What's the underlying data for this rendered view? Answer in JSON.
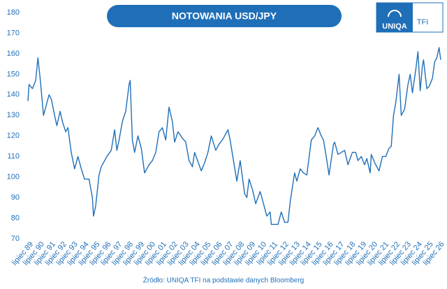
{
  "chart_data": {
    "type": "line",
    "title": "NOTOWANIA USD/JPY",
    "source": "Źródło: UNIQA TFI na podstawie danych Bloomberg",
    "logo": {
      "brand": "UNIQA",
      "suffix": "TFI"
    },
    "xlim": [
      1989.4,
      2026.8
    ],
    "ylim": [
      70,
      180
    ],
    "yticks": [
      70,
      80,
      90,
      100,
      110,
      120,
      130,
      140,
      150,
      160,
      170,
      180
    ],
    "grid": false,
    "xticks": [
      {
        "value": 1989.5,
        "label": "lipiec 89"
      },
      {
        "value": 1990.5,
        "label": "lipiec 90"
      },
      {
        "value": 1991.5,
        "label": "lipiec 91"
      },
      {
        "value": 1992.5,
        "label": "lipiec 92"
      },
      {
        "value": 1993.5,
        "label": "lipiec 93"
      },
      {
        "value": 1994.5,
        "label": "lipiec 94"
      },
      {
        "value": 1995.5,
        "label": "lipiec 95"
      },
      {
        "value": 1996.5,
        "label": "lipiec 96"
      },
      {
        "value": 1997.5,
        "label": "lipiec 97"
      },
      {
        "value": 1998.5,
        "label": "lipiec 98"
      },
      {
        "value": 1999.5,
        "label": "lipiec 99"
      },
      {
        "value": 2000.5,
        "label": "lipiec 00"
      },
      {
        "value": 2001.5,
        "label": "lipiec 01"
      },
      {
        "value": 2002.5,
        "label": "lipiec 02"
      },
      {
        "value": 2003.5,
        "label": "lipiec 03"
      },
      {
        "value": 2004.5,
        "label": "lipiec 04"
      },
      {
        "value": 2005.5,
        "label": "lipiec 05"
      },
      {
        "value": 2006.5,
        "label": "lipiec 06"
      },
      {
        "value": 2007.5,
        "label": "lipiec 07"
      },
      {
        "value": 2008.5,
        "label": "lipiec 08"
      },
      {
        "value": 2009.5,
        "label": "lipiec 09"
      },
      {
        "value": 2010.5,
        "label": "lipiec 10"
      },
      {
        "value": 2011.5,
        "label": "lipiec 11"
      },
      {
        "value": 2012.5,
        "label": "lipiec 12"
      },
      {
        "value": 2013.5,
        "label": "lipiec 13"
      },
      {
        "value": 2014.5,
        "label": "lipiec 14"
      },
      {
        "value": 2015.5,
        "label": "lipiec 15"
      },
      {
        "value": 2016.5,
        "label": "lipiec 16"
      },
      {
        "value": 2017.5,
        "label": "lipiec 17"
      },
      {
        "value": 2018.5,
        "label": "lipiec 18"
      },
      {
        "value": 2019.5,
        "label": "lipiec 19"
      },
      {
        "value": 2020.5,
        "label": "lipiec 20"
      },
      {
        "value": 2021.5,
        "label": "lipiec 21"
      },
      {
        "value": 2022.5,
        "label": "lipiec 22"
      },
      {
        "value": 2023.5,
        "label": "lipiec 23"
      },
      {
        "value": 2024.5,
        "label": "lipiec 24"
      },
      {
        "value": 2025.5,
        "label": "lipiec 25"
      },
      {
        "value": 2026.5,
        "label": "lipiec 26"
      }
    ],
    "series": [
      {
        "color": "#1f6fb8",
        "x": [
          1989.4,
          1989.5,
          1989.8,
          1990.1,
          1990.3,
          1990.5,
          1990.8,
          1991.0,
          1991.3,
          1991.5,
          1991.8,
          1992.0,
          1992.3,
          1992.5,
          1992.8,
          1993.0,
          1993.3,
          1993.6,
          1993.9,
          1994.2,
          1994.5,
          1994.9,
          1995.2,
          1995.3,
          1995.5,
          1995.8,
          1996.0,
          1996.5,
          1996.9,
          1997.2,
          1997.4,
          1997.6,
          1997.9,
          1998.2,
          1998.5,
          1998.6,
          1998.8,
          1999.0,
          1999.3,
          1999.6,
          1999.9,
          2000.3,
          2000.6,
          2000.9,
          2001.2,
          2001.5,
          2001.8,
          2002.1,
          2002.4,
          2002.6,
          2002.9,
          2003.3,
          2003.6,
          2003.9,
          2004.2,
          2004.4,
          2004.8,
          2005.0,
          2005.3,
          2005.6,
          2005.9,
          2006.3,
          2006.6,
          2006.9,
          2007.4,
          2007.6,
          2007.9,
          2008.2,
          2008.5,
          2008.9,
          2009.1,
          2009.3,
          2009.6,
          2009.9,
          2010.3,
          2010.6,
          2010.9,
          2011.2,
          2011.3,
          2011.6,
          2011.9,
          2012.2,
          2012.5,
          2012.8,
          2013.0,
          2013.4,
          2013.6,
          2013.9,
          2014.2,
          2014.5,
          2014.9,
          2015.2,
          2015.5,
          2015.8,
          2016.0,
          2016.3,
          2016.5,
          2016.9,
          2017.0,
          2017.3,
          2017.6,
          2017.9,
          2018.2,
          2018.6,
          2018.9,
          2019.1,
          2019.4,
          2019.7,
          2019.9,
          2020.2,
          2020.3,
          2020.6,
          2020.9,
          2021.0,
          2021.3,
          2021.6,
          2021.9,
          2022.1,
          2022.3,
          2022.5,
          2022.8,
          2023.0,
          2023.3,
          2023.6,
          2023.8,
          2024.0,
          2024.3,
          2024.5,
          2024.7,
          2024.9,
          2025.0,
          2025.3,
          2025.5,
          2025.8,
          2026.0,
          2026.2,
          2026.4,
          2026.55
        ],
        "values": [
          137,
          145,
          143,
          147,
          158,
          148,
          130,
          134,
          140,
          138,
          130,
          125,
          132,
          127,
          122,
          124,
          112,
          104,
          110,
          104,
          99,
          99,
          90,
          81,
          86,
          101,
          105,
          110,
          113,
          123,
          113,
          118,
          127,
          132,
          145,
          147,
          118,
          112,
          120,
          114,
          102,
          106,
          108,
          112,
          122,
          124,
          118,
          134,
          127,
          117,
          122,
          119,
          117,
          108,
          105,
          112,
          106,
          103,
          107,
          112,
          120,
          113,
          116,
          118,
          123,
          118,
          108,
          98,
          108,
          92,
          90,
          99,
          94,
          87,
          93,
          87,
          81,
          83,
          77,
          77,
          77,
          83,
          78,
          78,
          88,
          102,
          98,
          104,
          102,
          101,
          118,
          120,
          124,
          120,
          118,
          108,
          101,
          116,
          117,
          111,
          112,
          113,
          106,
          112,
          112,
          108,
          110,
          106,
          109,
          102,
          111,
          107,
          104,
          103,
          110,
          110,
          114,
          115,
          130,
          136,
          150,
          130,
          133,
          145,
          150,
          141,
          152,
          161,
          142,
          154,
          157,
          143,
          144,
          148,
          156,
          158,
          163,
          157
        ]
      }
    ]
  }
}
